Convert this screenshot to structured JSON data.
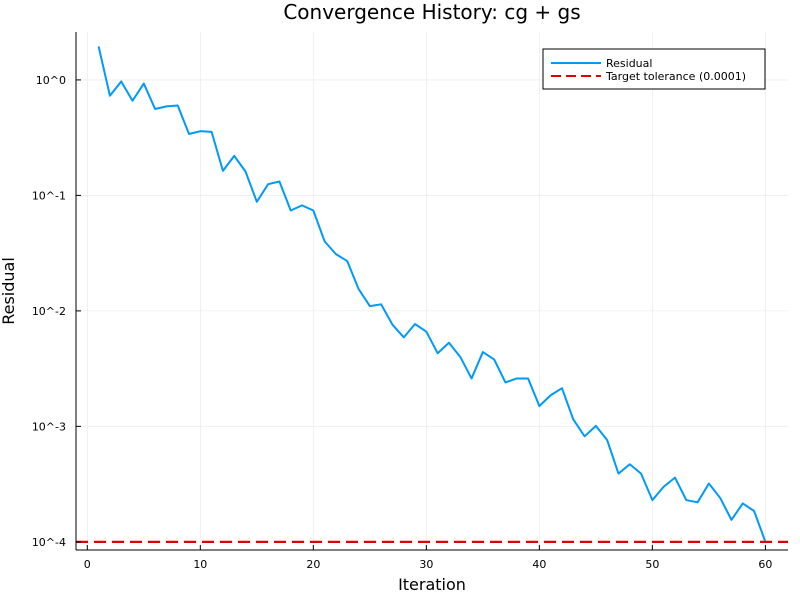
{
  "chart_data": {
    "type": "line",
    "title": "Convergence History: cg + gs",
    "xlabel": "Iteration",
    "ylabel": "Residual",
    "xlim": [
      -1,
      62
    ],
    "ylim": [
      8.5e-05,
      2.6
    ],
    "y_scale": "log",
    "x_ticks": [
      0,
      10,
      20,
      30,
      40,
      50,
      60
    ],
    "x_tick_labels": [
      "0",
      "10",
      "20",
      "30",
      "40",
      "50",
      "60"
    ],
    "y_ticks": [
      0.0001,
      0.001,
      0.01,
      0.1,
      1
    ],
    "y_tick_labels": [
      "10^-4",
      "10^-3",
      "10^-2",
      "10^-1",
      "10^0"
    ],
    "grid": true,
    "legend_position": "top-right",
    "series": [
      {
        "name": "Residual",
        "color": "#009AFA",
        "style": "solid",
        "x": [
          1,
          2,
          3,
          4,
          5,
          6,
          7,
          8,
          9,
          10,
          11,
          12,
          13,
          14,
          15,
          16,
          17,
          18,
          19,
          20,
          21,
          22,
          23,
          24,
          25,
          26,
          27,
          28,
          29,
          30,
          31,
          32,
          33,
          34,
          35,
          36,
          37,
          38,
          39,
          40,
          41,
          42,
          43,
          44,
          45,
          46,
          47,
          48,
          49,
          50,
          51,
          52,
          53,
          54,
          55,
          56,
          57,
          58,
          59,
          60
        ],
        "y": [
          1.95,
          0.73,
          0.97,
          0.66,
          0.93,
          0.56,
          0.59,
          0.6,
          0.34,
          0.36,
          0.355,
          0.163,
          0.22,
          0.161,
          0.088,
          0.125,
          0.132,
          0.074,
          0.082,
          0.074,
          0.04,
          0.031,
          0.027,
          0.0155,
          0.011,
          0.0114,
          0.0076,
          0.0059,
          0.0077,
          0.0066,
          0.0043,
          0.0053,
          0.004,
          0.0026,
          0.0044,
          0.0038,
          0.0024,
          0.0026,
          0.0026,
          0.0015,
          0.00186,
          0.00214,
          0.00115,
          0.00082,
          0.00101,
          0.00076,
          0.00039,
          0.00047,
          0.00039,
          0.00023,
          0.0003,
          0.00036,
          0.00023,
          0.00022,
          0.00032,
          0.00024,
          0.000155,
          0.000215,
          0.000185,
          0.0001
        ]
      },
      {
        "name": "Target tolerance (0.0001)",
        "color": "#E00000",
        "style": "dashed",
        "y_constant": 0.0001
      }
    ]
  }
}
